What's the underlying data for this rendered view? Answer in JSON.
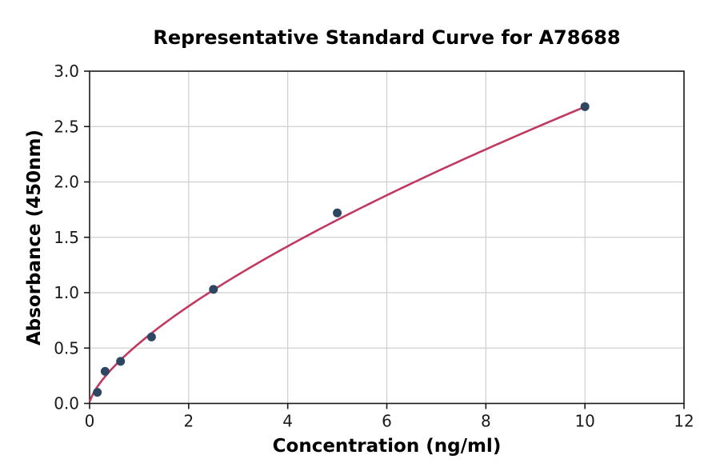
{
  "title": "Representative Standard Curve for A78688",
  "colors": {
    "curve": "#C03A60",
    "point": "#2F4663",
    "grid": "#CFCFCF",
    "axis": "#1a1a1a",
    "background": "#FFFFFF"
  },
  "chart_data": {
    "type": "scatter",
    "title": "Representative Standard Curve for A78688",
    "xlabel": "Concentration (ng/ml)",
    "ylabel": "Absorbance (450nm)",
    "xlim": [
      0,
      12
    ],
    "ylim": [
      0,
      3.0
    ],
    "x_ticks": [
      0,
      2,
      4,
      6,
      8,
      10,
      12
    ],
    "x_tick_labels": [
      "0",
      "2",
      "4",
      "6",
      "8",
      "10",
      "12"
    ],
    "y_ticks": [
      0.0,
      0.5,
      1.0,
      1.5,
      2.0,
      2.5,
      3.0
    ],
    "y_tick_labels": [
      "0.0",
      "0.5",
      "1.0",
      "1.5",
      "2.0",
      "2.5",
      "3.0"
    ],
    "grid": true,
    "legend": "none",
    "points": [
      {
        "x": 0.156,
        "y": 0.1
      },
      {
        "x": 0.313,
        "y": 0.29
      },
      {
        "x": 0.625,
        "y": 0.38
      },
      {
        "x": 1.25,
        "y": 0.6
      },
      {
        "x": 2.5,
        "y": 1.03
      },
      {
        "x": 5,
        "y": 1.72
      },
      {
        "x": 10,
        "y": 2.68
      }
    ],
    "fit_curve": {
      "type": "power",
      "a": 0.543,
      "b": 0.693,
      "x_start": 0.012,
      "x_end": 10
    }
  }
}
